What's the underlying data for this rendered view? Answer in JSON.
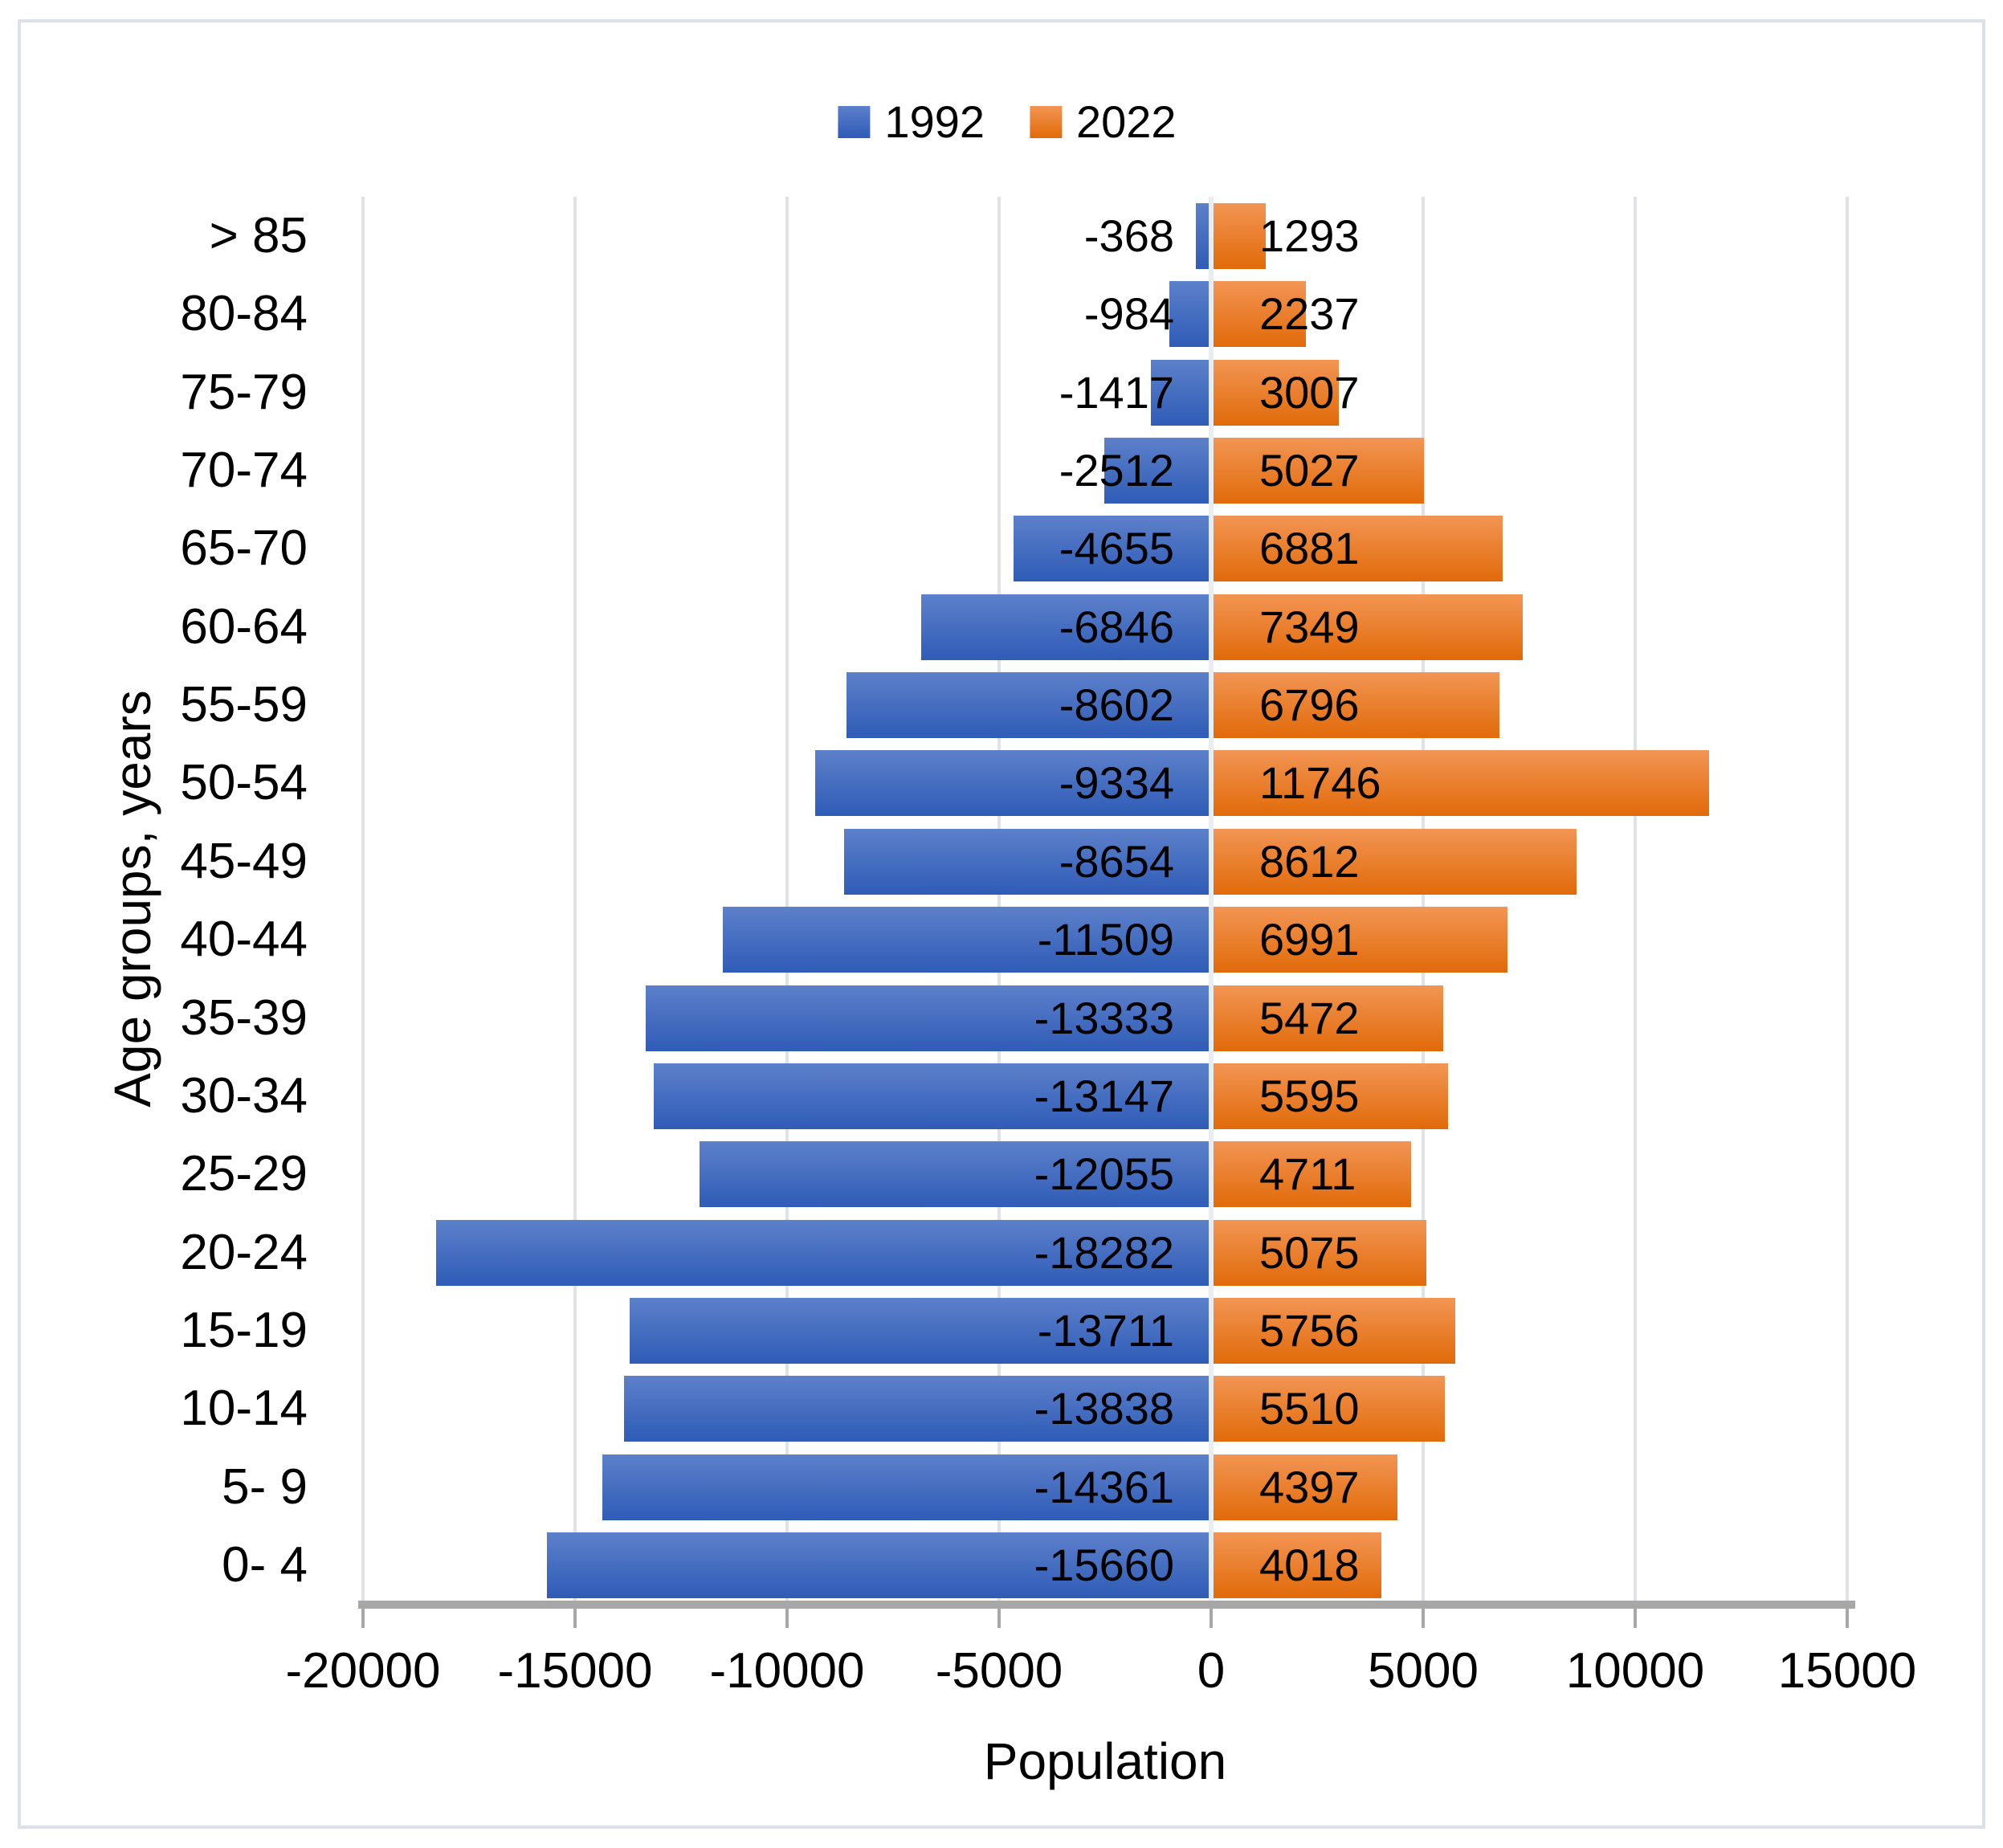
{
  "chart_data": {
    "type": "bar",
    "orientation": "horizontal",
    "title": "",
    "categories": [
      "> 85",
      "80-84",
      "75-79",
      "70-74",
      "65-70",
      "60-64",
      "55-59",
      "50-54",
      "45-49",
      "40-44",
      "35-39",
      "30-34",
      "25-29",
      "20-24",
      "15-19",
      "10-14",
      "5- 9",
      "0- 4"
    ],
    "series": [
      {
        "name": "1992",
        "values": [
          -368,
          -984,
          -1417,
          -2512,
          -4655,
          -6846,
          -8602,
          -9334,
          -8654,
          -11509,
          -13333,
          -13147,
          -12055,
          -18282,
          -13711,
          -13838,
          -14361,
          -15660
        ]
      },
      {
        "name": "2022",
        "values": [
          1293,
          2237,
          3007,
          5027,
          6881,
          7349,
          6796,
          11746,
          8612,
          6991,
          5472,
          5595,
          4711,
          5075,
          5756,
          5510,
          4397,
          4018
        ]
      }
    ],
    "xlabel": "Population",
    "ylabel": "Age groups, years",
    "xlim": [
      -20000,
      15000
    ],
    "x_tick_labels": [
      "-20000",
      "-15000",
      "-10000",
      "-5000",
      "0",
      "5000",
      "10000",
      "15000"
    ],
    "x_tick_values": [
      -20000,
      -15000,
      -10000,
      -5000,
      0,
      5000,
      10000,
      15000
    ],
    "grid": true,
    "legend_position": "top",
    "data_labels": true
  },
  "colors": {
    "series_1992_top": "#5d80ca",
    "series_1992_bottom": "#2f5cb7",
    "series_2022_top": "#f29554",
    "series_2022_bottom": "#e16a09",
    "gridline": "#dde2eb",
    "zero_line": "#e9ecf1",
    "axis_line": "#a7a7a7",
    "label_text": "#000000",
    "frame_border": "#dbe1ea"
  }
}
